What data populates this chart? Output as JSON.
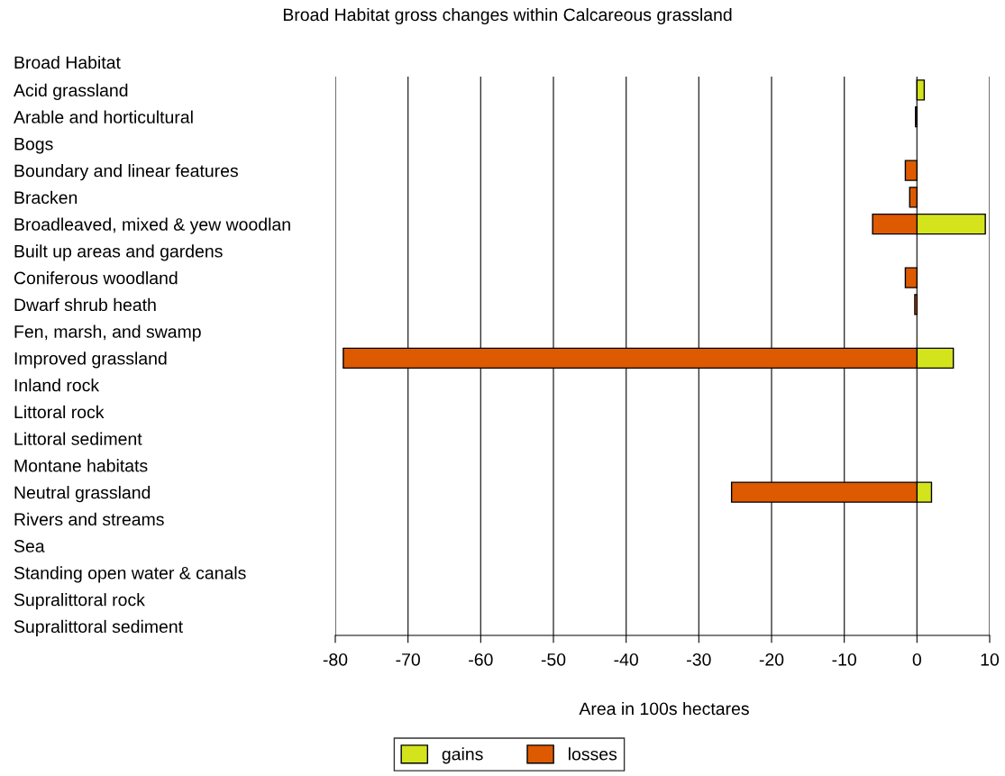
{
  "chart_data": {
    "type": "bar",
    "orientation": "horizontal",
    "title": "Broad Habitat gross changes within Calcareous grassland",
    "ylabel": "Broad Habitat",
    "xlabel": "Area in 100s hectares",
    "categories": [
      "Acid grassland",
      "Arable and horticultural",
      "Bogs",
      "Boundary and linear features",
      "Bracken",
      "Broadleaved, mixed & yew woodlan",
      "Built up areas and gardens",
      "Coniferous woodland",
      "Dwarf shrub heath",
      "Fen, marsh, and swamp",
      "Improved grassland",
      "Inland rock",
      "Littoral rock",
      "Littoral sediment",
      "Montane habitats",
      "Neutral grassland",
      "Rivers and streams",
      "Sea",
      "Standing open water & canals",
      "Supralittoral rock",
      "Supralittoral sediment"
    ],
    "series": [
      {
        "name": "gains",
        "color": "#d4e41c",
        "values": [
          1.0,
          null,
          null,
          null,
          null,
          9.4,
          null,
          null,
          null,
          null,
          5.0,
          null,
          null,
          null,
          null,
          2.0,
          null,
          null,
          null,
          null,
          null
        ]
      },
      {
        "name": "losses",
        "color": "#dd5a00",
        "values": [
          null,
          -0.2,
          null,
          -1.6,
          -1.0,
          -6.1,
          null,
          -1.6,
          -0.3,
          null,
          -78.9,
          null,
          null,
          null,
          null,
          -25.5,
          null,
          null,
          null,
          null,
          null
        ]
      }
    ],
    "xlim": [
      -80,
      10
    ],
    "xticks": [
      -80,
      -70,
      -60,
      -50,
      -40,
      -30,
      -20,
      -10,
      0,
      10
    ],
    "grid": "x",
    "legend": "bottom"
  }
}
